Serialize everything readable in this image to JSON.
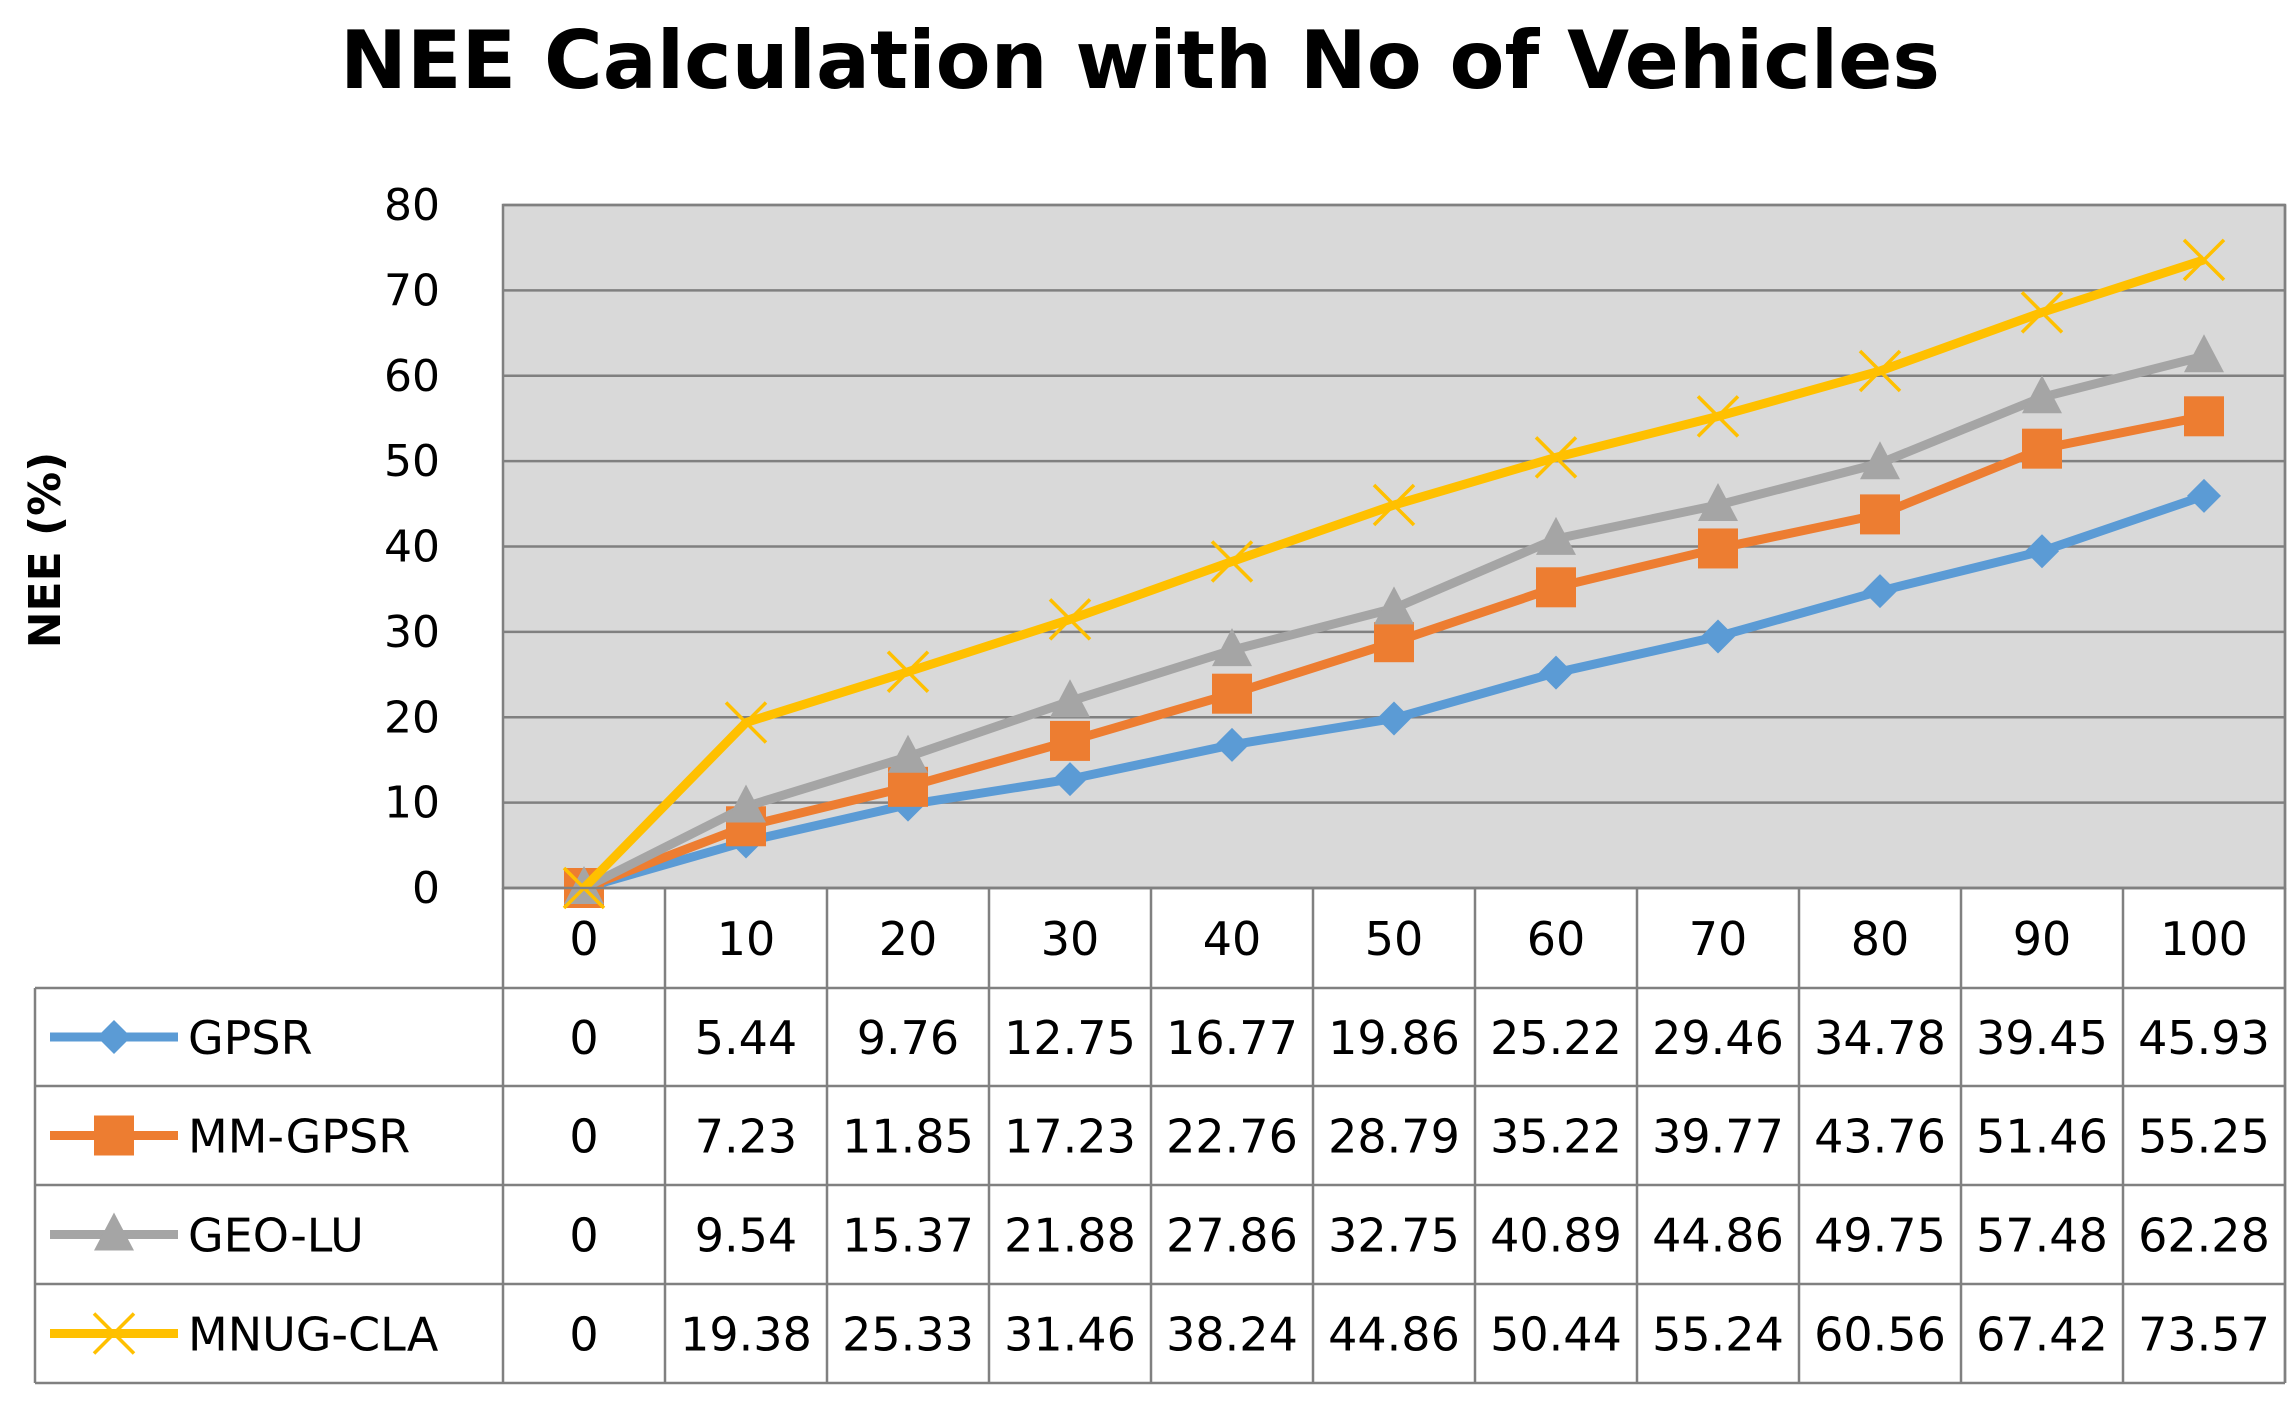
{
  "chart_data": {
    "type": "line",
    "title": "NEE Calculation with No of Vehicles",
    "xlabel": "",
    "ylabel": "NEE (%)",
    "ylim": [
      0,
      80
    ],
    "yticks": [
      "0",
      "10",
      "20",
      "30",
      "40",
      "50",
      "60",
      "70",
      "80"
    ],
    "grid": true,
    "legend": "data-table",
    "categories": [
      "0",
      "10",
      "20",
      "30",
      "40",
      "50",
      "60",
      "70",
      "80",
      "90",
      "100"
    ],
    "series": [
      {
        "name": "GPSR",
        "color": "#5B9BD5",
        "marker": "diamond",
        "values": [
          0,
          5.44,
          9.76,
          12.75,
          16.77,
          19.86,
          25.22,
          29.46,
          34.78,
          39.45,
          45.93
        ],
        "labels": [
          "0",
          "5.44",
          "9.76",
          "12.75",
          "16.77",
          "19.86",
          "25.22",
          "29.46",
          "34.78",
          "39.45",
          "45.93"
        ]
      },
      {
        "name": "MM-GPSR",
        "color": "#ED7D31",
        "marker": "square",
        "values": [
          0,
          7.23,
          11.85,
          17.23,
          22.76,
          28.79,
          35.22,
          39.77,
          43.76,
          51.46,
          55.25
        ],
        "labels": [
          "0",
          "7.23",
          "11.85",
          "17.23",
          "22.76",
          "28.79",
          "35.22",
          "39.77",
          "43.76",
          "51.46",
          "55.25"
        ]
      },
      {
        "name": "GEO-LU",
        "color": "#A5A5A5",
        "marker": "triangle",
        "values": [
          0,
          9.54,
          15.37,
          21.88,
          27.86,
          32.75,
          40.89,
          44.86,
          49.75,
          57.48,
          62.28
        ],
        "labels": [
          "0",
          "9.54",
          "15.37",
          "21.88",
          "27.86",
          "32.75",
          "40.89",
          "44.86",
          "49.75",
          "57.48",
          "62.28"
        ]
      },
      {
        "name": "MNUG-CLA",
        "color": "#FFC000",
        "marker": "x",
        "values": [
          0,
          19.38,
          25.33,
          31.46,
          38.24,
          44.86,
          50.44,
          55.24,
          60.56,
          67.42,
          73.57
        ],
        "labels": [
          "0",
          "19.38",
          "25.33",
          "31.46",
          "38.24",
          "44.86",
          "50.44",
          "55.24",
          "60.56",
          "67.42",
          "73.57"
        ]
      }
    ]
  }
}
